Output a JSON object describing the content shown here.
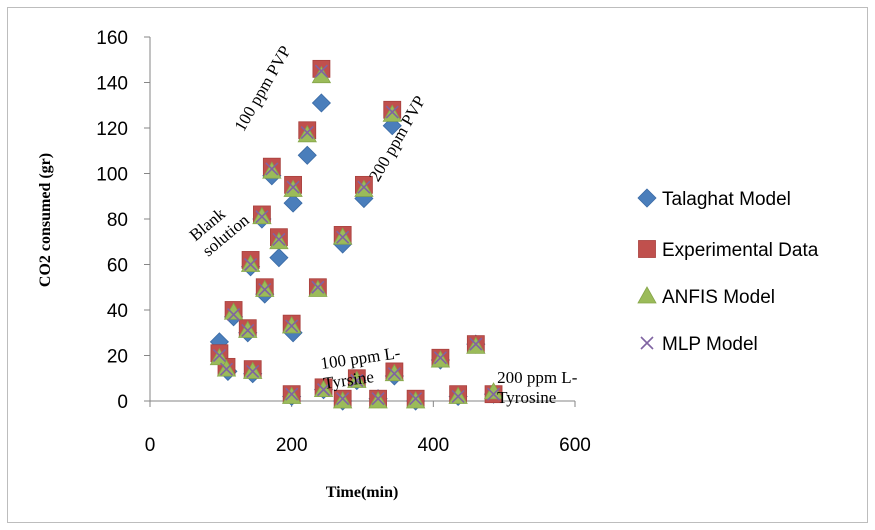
{
  "chart_data": {
    "type": "scatter",
    "xlabel": "Time(min)",
    "ylabel": "CO2 consumed (gr)",
    "xlim": [
      0,
      600
    ],
    "ylim": [
      0,
      160
    ],
    "x_ticks": [
      "0",
      "200",
      "400",
      "600"
    ],
    "y_ticks": [
      "0",
      "20",
      "40",
      "60",
      "80",
      "100",
      "120",
      "140",
      "160"
    ],
    "grid": false,
    "legend_position": "right",
    "series": [
      {
        "name": "Talaghat Model",
        "marker": "diamond",
        "color": "#4a7ebb",
        "points": [
          [
            98,
            26
          ],
          [
            118,
            37
          ],
          [
            138,
            30
          ],
          [
            158,
            80
          ],
          [
            162,
            47
          ],
          [
            182,
            63
          ],
          [
            202,
            87
          ],
          [
            222,
            108
          ],
          [
            242,
            131
          ],
          [
            272,
            69
          ],
          [
            302,
            89
          ],
          [
            342,
            121
          ],
          [
            202,
            30
          ],
          [
            172,
            99
          ],
          [
            142,
            59
          ],
          [
            145,
            12
          ],
          [
            110,
            13
          ],
          [
            200,
            2
          ],
          [
            245,
            5
          ],
          [
            272,
            0
          ],
          [
            292,
            9
          ],
          [
            322,
            1
          ],
          [
            345,
            11
          ],
          [
            375,
            0
          ],
          [
            410,
            18
          ],
          [
            435,
            2
          ],
          [
            460,
            25
          ],
          [
            485,
            3
          ]
        ]
      },
      {
        "name": "Experimental Data",
        "marker": "square",
        "color": "#c0504d",
        "points": [
          [
            98,
            21
          ],
          [
            108,
            15
          ],
          [
            118,
            40
          ],
          [
            138,
            32
          ],
          [
            142,
            62
          ],
          [
            145,
            14
          ],
          [
            158,
            82
          ],
          [
            162,
            50
          ],
          [
            172,
            103
          ],
          [
            182,
            72
          ],
          [
            200,
            34
          ],
          [
            202,
            95
          ],
          [
            222,
            119
          ],
          [
            237,
            50
          ],
          [
            242,
            146
          ],
          [
            272,
            73
          ],
          [
            302,
            95
          ],
          [
            342,
            128
          ],
          [
            200,
            3
          ],
          [
            245,
            6
          ],
          [
            272,
            1
          ],
          [
            292,
            10
          ],
          [
            322,
            1
          ],
          [
            345,
            13
          ],
          [
            375,
            1
          ],
          [
            410,
            19
          ],
          [
            435,
            3
          ],
          [
            460,
            25
          ],
          [
            485,
            3
          ]
        ]
      },
      {
        "name": "ANFIS Model",
        "marker": "triangle",
        "color": "#9bbb59",
        "points": [
          [
            98,
            19
          ],
          [
            108,
            14
          ],
          [
            118,
            39
          ],
          [
            138,
            31
          ],
          [
            142,
            60
          ],
          [
            145,
            13
          ],
          [
            158,
            81
          ],
          [
            162,
            49
          ],
          [
            172,
            101
          ],
          [
            182,
            70
          ],
          [
            200,
            33
          ],
          [
            202,
            93
          ],
          [
            222,
            117
          ],
          [
            237,
            49
          ],
          [
            242,
            143
          ],
          [
            272,
            72
          ],
          [
            302,
            93
          ],
          [
            342,
            126
          ],
          [
            200,
            2
          ],
          [
            245,
            5
          ],
          [
            272,
            0
          ],
          [
            292,
            9
          ],
          [
            322,
            0
          ],
          [
            345,
            12
          ],
          [
            375,
            0
          ],
          [
            410,
            18
          ],
          [
            435,
            2
          ],
          [
            460,
            24
          ],
          [
            485,
            4
          ]
        ]
      },
      {
        "name": "MLP Model",
        "marker": "x",
        "color": "#8064a2",
        "points": [
          [
            98,
            20
          ],
          [
            108,
            14
          ],
          [
            118,
            38
          ],
          [
            138,
            31
          ],
          [
            142,
            60
          ],
          [
            145,
            13
          ],
          [
            158,
            81
          ],
          [
            162,
            49
          ],
          [
            172,
            102
          ],
          [
            182,
            71
          ],
          [
            200,
            33
          ],
          [
            202,
            94
          ],
          [
            222,
            118
          ],
          [
            237,
            50
          ],
          [
            242,
            145
          ],
          [
            272,
            72
          ],
          [
            302,
            94
          ],
          [
            342,
            127
          ],
          [
            200,
            3
          ],
          [
            245,
            5
          ],
          [
            272,
            1
          ],
          [
            292,
            9
          ],
          [
            322,
            1
          ],
          [
            345,
            12
          ],
          [
            375,
            1
          ],
          [
            410,
            19
          ],
          [
            435,
            2
          ],
          [
            460,
            25
          ],
          [
            485,
            3
          ]
        ]
      }
    ],
    "annotations": [
      {
        "lines": [
          "100 ppm PVP"
        ],
        "x": 132,
        "y": 118,
        "angle": -60
      },
      {
        "lines": [
          "200 ppm PVP"
        ],
        "x": 322,
        "y": 96,
        "angle": -60
      },
      {
        "lines": [
          "Blank",
          "solution"
        ],
        "x": 64,
        "y": 70,
        "angle": -40
      },
      {
        "lines": [
          "100 ppm L-",
          "Tyrsine"
        ],
        "x": 242,
        "y": 14,
        "angle": -8
      },
      {
        "lines": [
          "200 ppm L-",
          "Tyrosine"
        ],
        "x": 490,
        "y": 8,
        "angle": 0
      }
    ]
  }
}
